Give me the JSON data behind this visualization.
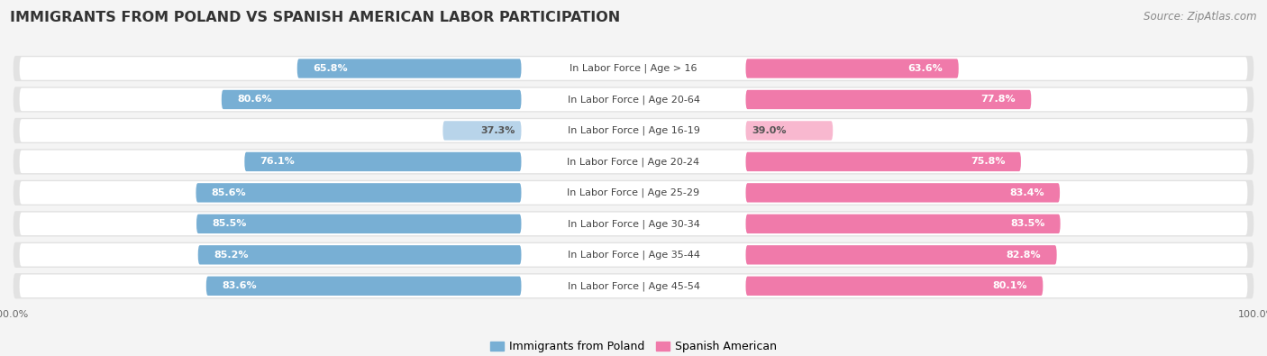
{
  "title": "IMMIGRANTS FROM POLAND VS SPANISH AMERICAN LABOR PARTICIPATION",
  "source": "Source: ZipAtlas.com",
  "categories": [
    "In Labor Force | Age > 16",
    "In Labor Force | Age 20-64",
    "In Labor Force | Age 16-19",
    "In Labor Force | Age 20-24",
    "In Labor Force | Age 25-29",
    "In Labor Force | Age 30-34",
    "In Labor Force | Age 35-44",
    "In Labor Force | Age 45-54"
  ],
  "poland_values": [
    65.8,
    80.6,
    37.3,
    76.1,
    85.6,
    85.5,
    85.2,
    83.6
  ],
  "spanish_values": [
    63.6,
    77.8,
    39.0,
    75.8,
    83.4,
    83.5,
    82.8,
    80.1
  ],
  "poland_color": "#78afd4",
  "poland_color_light": "#b8d4ea",
  "spanish_color": "#f07aaa",
  "spanish_color_light": "#f8b8cf",
  "row_bg": "#e8e8e8",
  "row_inner_bg": "#ffffff",
  "background_color": "#f4f4f4",
  "title_fontsize": 11.5,
  "source_fontsize": 8.5,
  "cat_fontsize": 8,
  "value_fontsize": 8,
  "legend_fontsize": 9,
  "axis_label_fontsize": 8
}
